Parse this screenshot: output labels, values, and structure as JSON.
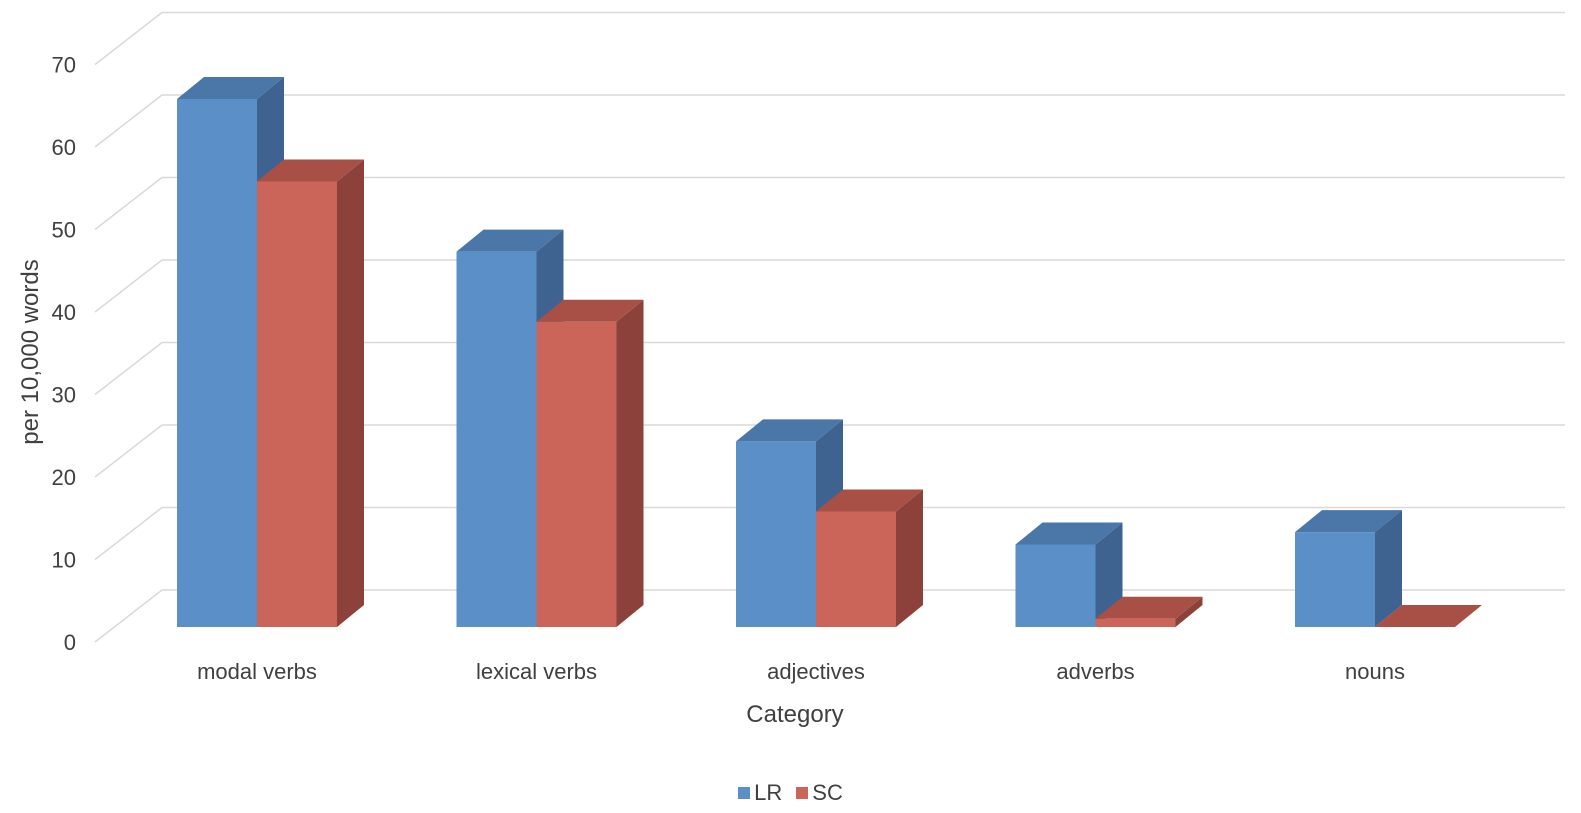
{
  "chart_data": {
    "type": "bar",
    "categories": [
      "modal verbs",
      "lexical verbs",
      "adjectives",
      "adverbs",
      "nouns"
    ],
    "series": [
      {
        "name": "LR",
        "values": [
          64,
          45.5,
          22.5,
          10,
          11.5
        ],
        "color": "#5b8fc7",
        "top": "#4a76a8",
        "side": "#3f6390"
      },
      {
        "name": "SC",
        "values": [
          54,
          37,
          14,
          1,
          0
        ],
        "color": "#cb6459",
        "top": "#a84f46",
        "side": "#8c423a"
      }
    ],
    "xlabel": "Category",
    "ylabel": "per 10,000 words",
    "ylim": [
      0,
      70
    ],
    "yticks": [
      0,
      10,
      20,
      30,
      40,
      50,
      60,
      70
    ],
    "grid": true,
    "legend_position": "bottom-center"
  }
}
